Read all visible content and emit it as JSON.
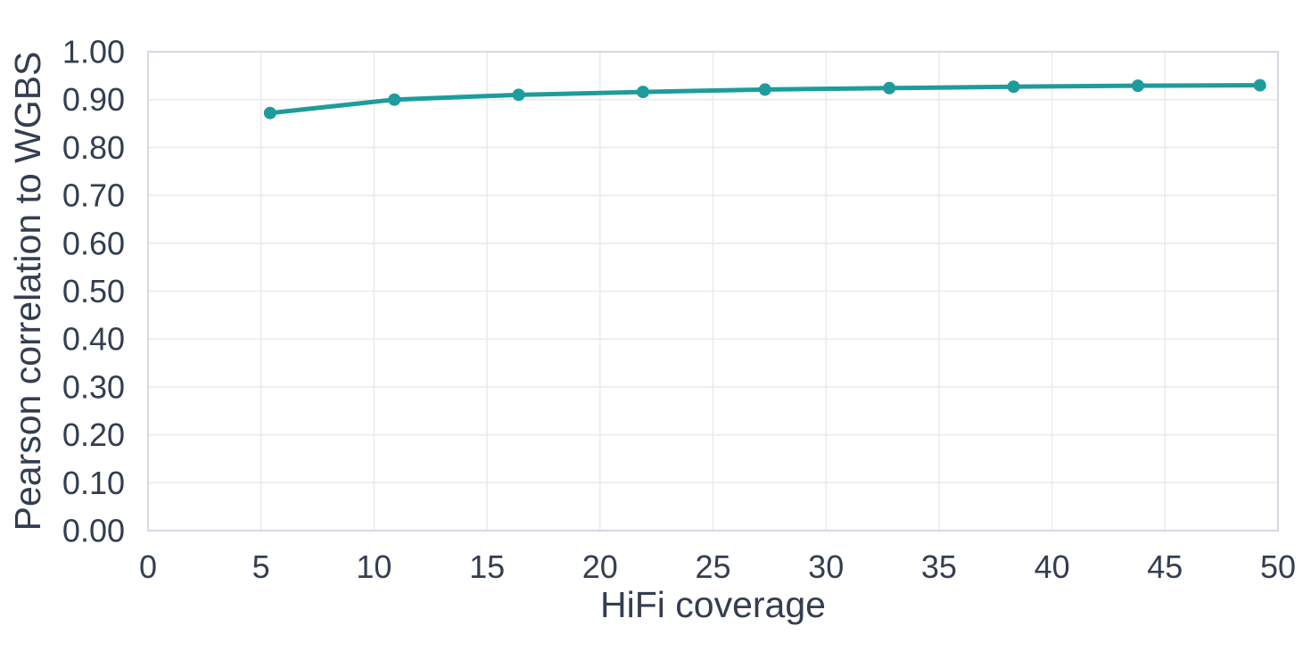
{
  "page": {
    "background": "#FFFFFF"
  },
  "chart_data": {
    "type": "line",
    "title": "",
    "xlabel": "HiFi coverage",
    "ylabel": "Pearson correlation to WGBS",
    "x": [
      5.4,
      10.9,
      16.4,
      21.9,
      27.3,
      32.8,
      38.3,
      43.8,
      49.2
    ],
    "y": [
      0.872,
      0.9,
      0.91,
      0.916,
      0.921,
      0.924,
      0.927,
      0.929,
      0.93
    ],
    "xlim": [
      0,
      50
    ],
    "ylim": [
      0.0,
      1.0
    ],
    "x_tick_labels": [
      "0",
      "5",
      "10",
      "15",
      "20",
      "25",
      "30",
      "35",
      "40",
      "45",
      "50"
    ],
    "y_tick_labels": [
      "0.00",
      "0.10",
      "0.20",
      "0.30",
      "0.40",
      "0.50",
      "0.60",
      "0.70",
      "0.80",
      "0.90",
      "1.00"
    ],
    "grid": true,
    "legend": "none",
    "colors": {
      "line": "#1E9C9C",
      "marker": "#1E9C9C",
      "text": "#333E50",
      "grid": "#EAEAED",
      "plot_border": "#D5D9E3",
      "background": "#FFFFFF"
    }
  }
}
